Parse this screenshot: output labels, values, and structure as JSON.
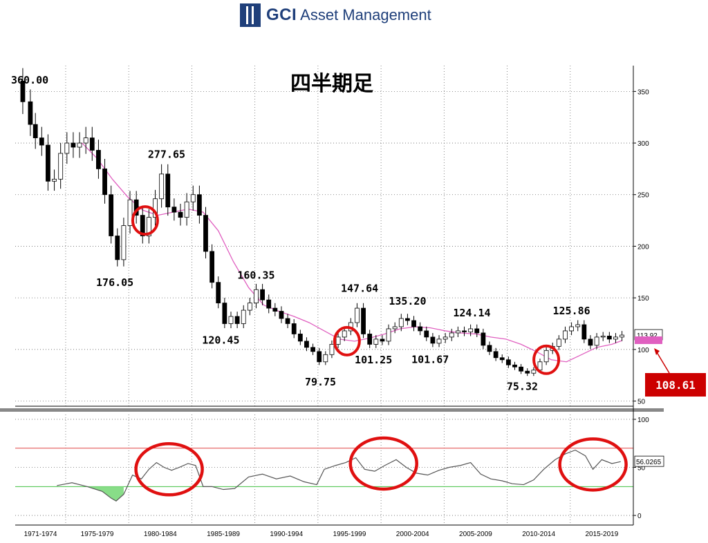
{
  "header": {
    "brand_bold": "GCI",
    "brand_rest": "Asset Management",
    "brand_color": "#1f3f7a"
  },
  "chart_data": {
    "type": "candlestick",
    "title": "四半期足",
    "colors": {
      "up": "#ffffff",
      "down": "#000000",
      "moving_average": "#e060c0",
      "oscillator": "#555555",
      "oversold_fill": "#88dd88",
      "overbought_line": "#e04040",
      "oversold_line": "#40c040",
      "highlight_circle": "#e01010",
      "callout": "#cc0000"
    },
    "x_tick_labels": [
      "1971-1974",
      "1975-1979",
      "1980-1984",
      "1985-1989",
      "1990-1994",
      "1995-1999",
      "2000-2004",
      "2005-2009",
      "2010-2014",
      "2015-2019"
    ],
    "x_range": [
      1971,
      2020
    ],
    "price_axis": {
      "ticks": [
        50,
        100,
        150,
        200,
        250,
        300,
        350
      ],
      "ylim": [
        45,
        375
      ]
    },
    "oscillator_axis": {
      "ticks": [
        0,
        50,
        100
      ],
      "ylim": [
        -10,
        105
      ],
      "upper_line": 70,
      "lower_line": 30
    },
    "price_series": [
      [
        1971.2,
        360
      ],
      [
        1971.6,
        340
      ],
      [
        1972.2,
        318
      ],
      [
        1972.6,
        305
      ],
      [
        1973.1,
        298
      ],
      [
        1973.6,
        263
      ],
      [
        1974.1,
        265
      ],
      [
        1974.6,
        290
      ],
      [
        1975.1,
        300
      ],
      [
        1975.6,
        296
      ],
      [
        1976.1,
        300
      ],
      [
        1976.6,
        305
      ],
      [
        1977.1,
        293
      ],
      [
        1977.6,
        275
      ],
      [
        1978.1,
        250
      ],
      [
        1978.6,
        210
      ],
      [
        1979.1,
        187
      ],
      [
        1979.6,
        220
      ],
      [
        1980.1,
        245
      ],
      [
        1980.6,
        230
      ],
      [
        1981.1,
        210
      ],
      [
        1981.6,
        228
      ],
      [
        1982.1,
        246
      ],
      [
        1982.6,
        270
      ],
      [
        1983.1,
        238
      ],
      [
        1983.6,
        233
      ],
      [
        1984.1,
        228
      ],
      [
        1984.6,
        243
      ],
      [
        1985.1,
        250
      ],
      [
        1985.6,
        230
      ],
      [
        1986.1,
        195
      ],
      [
        1986.6,
        165
      ],
      [
        1987.1,
        145
      ],
      [
        1987.6,
        125
      ],
      [
        1988.1,
        132
      ],
      [
        1988.6,
        125
      ],
      [
        1989.1,
        138
      ],
      [
        1989.6,
        145
      ],
      [
        1990.1,
        158
      ],
      [
        1990.6,
        148
      ],
      [
        1991.1,
        140
      ],
      [
        1991.6,
        137
      ],
      [
        1992.1,
        130
      ],
      [
        1992.6,
        125
      ],
      [
        1993.1,
        115
      ],
      [
        1993.6,
        108
      ],
      [
        1994.1,
        102
      ],
      [
        1994.6,
        98
      ],
      [
        1995.1,
        88
      ],
      [
        1995.6,
        95
      ],
      [
        1996.1,
        105
      ],
      [
        1996.6,
        112
      ],
      [
        1997.1,
        118
      ],
      [
        1997.6,
        126
      ],
      [
        1998.1,
        140
      ],
      [
        1998.6,
        115
      ],
      [
        1999.1,
        105
      ],
      [
        1999.6,
        110
      ],
      [
        2000.1,
        108
      ],
      [
        2000.6,
        120
      ],
      [
        2001.1,
        122
      ],
      [
        2001.6,
        130
      ],
      [
        2002.1,
        128
      ],
      [
        2002.6,
        122
      ],
      [
        2003.1,
        118
      ],
      [
        2003.6,
        112
      ],
      [
        2004.1,
        106
      ],
      [
        2004.6,
        110
      ],
      [
        2005.1,
        112
      ],
      [
        2005.6,
        116
      ],
      [
        2006.1,
        118
      ],
      [
        2006.6,
        117
      ],
      [
        2007.1,
        120
      ],
      [
        2007.6,
        116
      ],
      [
        2008.1,
        104
      ],
      [
        2008.6,
        98
      ],
      [
        2009.1,
        92
      ],
      [
        2009.6,
        90
      ],
      [
        2010.1,
        85
      ],
      [
        2010.6,
        83
      ],
      [
        2011.1,
        79
      ],
      [
        2011.6,
        77
      ],
      [
        2012.1,
        80
      ],
      [
        2012.6,
        88
      ],
      [
        2013.1,
        99
      ],
      [
        2013.6,
        103
      ],
      [
        2014.1,
        110
      ],
      [
        2014.6,
        118
      ],
      [
        2015.1,
        122
      ],
      [
        2015.6,
        124
      ],
      [
        2016.1,
        110
      ],
      [
        2016.6,
        104
      ],
      [
        2017.1,
        112
      ],
      [
        2017.6,
        113
      ],
      [
        2018.1,
        110
      ],
      [
        2018.6,
        112
      ],
      [
        2019.1,
        113.92
      ]
    ],
    "moving_average": [
      [
        1976.3,
        300
      ],
      [
        1977.5,
        285
      ],
      [
        1978.7,
        265
      ],
      [
        1979.9,
        248
      ],
      [
        1981.1,
        235
      ],
      [
        1982.3,
        230
      ],
      [
        1983.5,
        233
      ],
      [
        1984.7,
        236
      ],
      [
        1985.9,
        233
      ],
      [
        1987.1,
        215
      ],
      [
        1988.3,
        185
      ],
      [
        1989.5,
        160
      ],
      [
        1990.7,
        143
      ],
      [
        1991.9,
        137
      ],
      [
        1993.1,
        132
      ],
      [
        1994.3,
        126
      ],
      [
        1995.5,
        118
      ],
      [
        1996.7,
        110
      ],
      [
        1997.9,
        108
      ],
      [
        1999.1,
        111
      ],
      [
        2000.3,
        115
      ],
      [
        2001.5,
        120
      ],
      [
        2002.7,
        122
      ],
      [
        2003.9,
        121
      ],
      [
        2005.1,
        118
      ],
      [
        2006.3,
        116
      ],
      [
        2007.5,
        115
      ],
      [
        2008.7,
        112
      ],
      [
        2009.9,
        110
      ],
      [
        2011.1,
        105
      ],
      [
        2012.3,
        98
      ],
      [
        2013.5,
        90
      ],
      [
        2014.7,
        88
      ],
      [
        2015.9,
        95
      ],
      [
        2017.1,
        102
      ],
      [
        2018.3,
        105
      ],
      [
        2019.1,
        108.61
      ]
    ],
    "oscillator_series": [
      [
        1974.3,
        31
      ],
      [
        1975.5,
        34
      ],
      [
        1976.7,
        30
      ],
      [
        1977.9,
        25
      ],
      [
        1978.6,
        18
      ],
      [
        1979.0,
        15
      ],
      [
        1979.6,
        22
      ],
      [
        1980.3,
        42
      ],
      [
        1981.0,
        38
      ],
      [
        1981.6,
        48
      ],
      [
        1982.2,
        55
      ],
      [
        1982.8,
        50
      ],
      [
        1983.4,
        47
      ],
      [
        1984.0,
        50
      ],
      [
        1984.7,
        54
      ],
      [
        1985.3,
        52
      ],
      [
        1985.9,
        30
      ],
      [
        1986.6,
        30
      ],
      [
        1987.5,
        27
      ],
      [
        1988.4,
        28
      ],
      [
        1989.5,
        40
      ],
      [
        1990.6,
        43
      ],
      [
        1991.7,
        38
      ],
      [
        1992.8,
        41
      ],
      [
        1993.9,
        35
      ],
      [
        1994.9,
        32
      ],
      [
        1995.5,
        48
      ],
      [
        1996.4,
        52
      ],
      [
        1997.2,
        55
      ],
      [
        1998.0,
        60
      ],
      [
        1998.7,
        48
      ],
      [
        1999.5,
        46
      ],
      [
        2000.3,
        52
      ],
      [
        2001.2,
        58
      ],
      [
        2002.0,
        50
      ],
      [
        2002.8,
        44
      ],
      [
        2003.7,
        42
      ],
      [
        2004.6,
        47
      ],
      [
        2005.4,
        50
      ],
      [
        2006.3,
        52
      ],
      [
        2007.1,
        55
      ],
      [
        2007.9,
        43
      ],
      [
        2008.7,
        38
      ],
      [
        2009.6,
        36
      ],
      [
        2010.4,
        33
      ],
      [
        2011.3,
        32
      ],
      [
        2012.1,
        37
      ],
      [
        2012.9,
        48
      ],
      [
        2013.8,
        58
      ],
      [
        2014.6,
        64
      ],
      [
        2015.4,
        68
      ],
      [
        2016.2,
        62
      ],
      [
        2016.8,
        48
      ],
      [
        2017.5,
        58
      ],
      [
        2018.3,
        54
      ],
      [
        2019.0,
        56
      ]
    ],
    "annotations": [
      {
        "text": "360.00",
        "x": 1971.2,
        "y": 360,
        "pos": "left-top"
      },
      {
        "text": "277.65",
        "x": 1983.0,
        "y": 277.65,
        "pos": "above"
      },
      {
        "text": "176.05",
        "x": 1978.9,
        "y": 176.05,
        "pos": "below"
      },
      {
        "text": "120.45",
        "x": 1987.3,
        "y": 120.45,
        "pos": "below"
      },
      {
        "text": "160.35",
        "x": 1990.1,
        "y": 160.35,
        "pos": "above"
      },
      {
        "text": "79.75",
        "x": 1995.2,
        "y": 79.75,
        "pos": "below"
      },
      {
        "text": "147.64",
        "x": 1998.3,
        "y": 147.64,
        "pos": "above"
      },
      {
        "text": "101.25",
        "x": 1999.4,
        "y": 101.25,
        "pos": "below"
      },
      {
        "text": "135.20",
        "x": 2002.1,
        "y": 135.2,
        "pos": "above"
      },
      {
        "text": "101.67",
        "x": 2003.9,
        "y": 101.67,
        "pos": "below"
      },
      {
        "text": "124.14",
        "x": 2007.2,
        "y": 124.14,
        "pos": "above"
      },
      {
        "text": "75.32",
        "x": 2011.2,
        "y": 75.32,
        "pos": "below"
      },
      {
        "text": "125.86",
        "x": 2015.1,
        "y": 125.86,
        "pos": "above"
      }
    ],
    "last_price_label": "113.92",
    "oscillator_last_label": "56.0265",
    "ma_callout_label": "108.61",
    "highlight_circles_price": [
      [
        1981.3,
        225
      ],
      [
        1997.3,
        108
      ],
      [
        2013.1,
        90
      ]
    ],
    "highlight_circles_osc": [
      [
        1983.2,
        48
      ],
      [
        2000.2,
        54
      ],
      [
        2016.8,
        53
      ]
    ]
  }
}
